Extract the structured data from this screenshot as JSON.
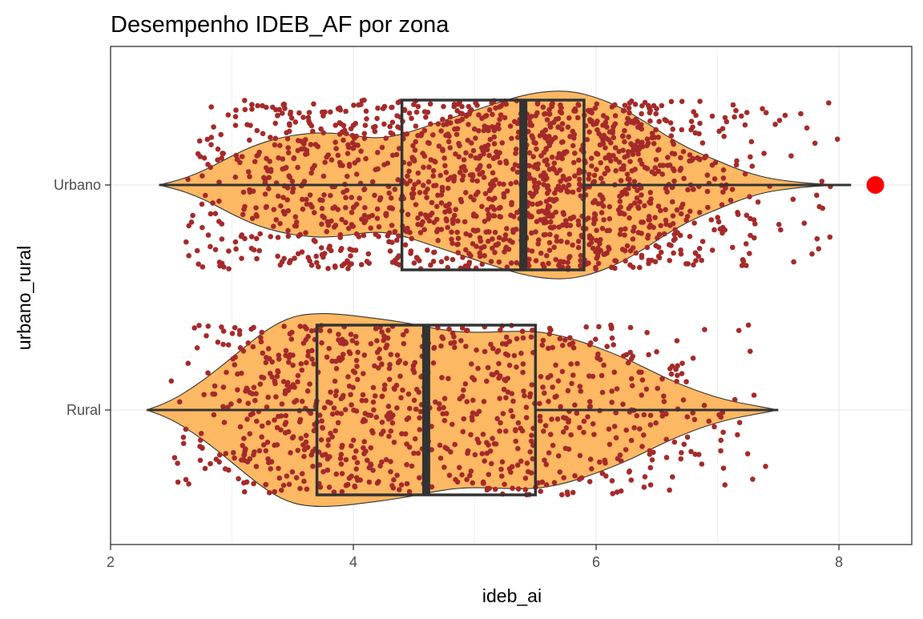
{
  "chart_data": {
    "type": "violin",
    "title": "Desempenho IDEB_AF por zona",
    "xlabel": "ideb_ai",
    "ylabel": "urbano_rural",
    "xlim": [
      2,
      8.6
    ],
    "x_ticks": [
      2,
      4,
      6,
      8
    ],
    "categories": [
      "Rural",
      "Urbano"
    ],
    "grid": true,
    "colors": {
      "violin_fill": "#FDB863",
      "points": "#A52A2A",
      "box_line": "#333333",
      "outlier": "#FF0000",
      "panel_border": "#333333",
      "grid": "#EBEBEB"
    },
    "boxplots": [
      {
        "category": "Urbano",
        "min": 2.4,
        "q1": 4.4,
        "median": 5.4,
        "q3": 5.9,
        "max": 8.1,
        "outliers": [
          8.3
        ]
      },
      {
        "category": "Rural",
        "min": 2.3,
        "q1": 3.7,
        "median": 4.6,
        "q3": 5.5,
        "max": 7.5,
        "outliers": []
      }
    ],
    "violins": [
      {
        "category": "Urbano",
        "x": [
          2.4,
          2.6,
          2.8,
          3.0,
          3.2,
          3.4,
          3.6,
          3.8,
          4.0,
          4.2,
          4.4,
          4.6,
          4.8,
          5.0,
          5.2,
          5.4,
          5.6,
          5.8,
          6.0,
          6.2,
          6.4,
          6.6,
          6.8,
          7.0,
          7.2,
          7.4,
          7.6,
          7.8,
          8.0,
          8.1
        ],
        "density": [
          0.0,
          0.06,
          0.16,
          0.29,
          0.4,
          0.47,
          0.51,
          0.52,
          0.49,
          0.46,
          0.5,
          0.58,
          0.66,
          0.74,
          0.82,
          0.89,
          0.93,
          0.93,
          0.87,
          0.77,
          0.63,
          0.47,
          0.34,
          0.24,
          0.14,
          0.07,
          0.035,
          0.012,
          0.003,
          0.0
        ]
      },
      {
        "category": "Rural",
        "x": [
          2.3,
          2.5,
          2.7,
          2.9,
          3.1,
          3.3,
          3.5,
          3.7,
          3.9,
          4.1,
          4.3,
          4.5,
          4.7,
          4.9,
          5.1,
          5.3,
          5.5,
          5.7,
          5.9,
          6.1,
          6.3,
          6.5,
          6.7,
          6.9,
          7.1,
          7.3,
          7.5
        ],
        "density": [
          0.0,
          0.09,
          0.24,
          0.42,
          0.62,
          0.81,
          0.93,
          0.96,
          0.95,
          0.92,
          0.89,
          0.85,
          0.8,
          0.77,
          0.77,
          0.78,
          0.78,
          0.74,
          0.67,
          0.58,
          0.48,
          0.36,
          0.25,
          0.16,
          0.09,
          0.045,
          0.0
        ]
      }
    ],
    "jitter_points": {
      "Urbano": {
        "count": 1600,
        "center": 5.3,
        "spread": 1.05,
        "min": 2.6,
        "max": 8.0,
        "seed": 17
      },
      "Rural": {
        "count": 900,
        "center": 4.75,
        "spread": 1.05,
        "min": 2.5,
        "max": 7.5,
        "seed": 29
      }
    }
  }
}
